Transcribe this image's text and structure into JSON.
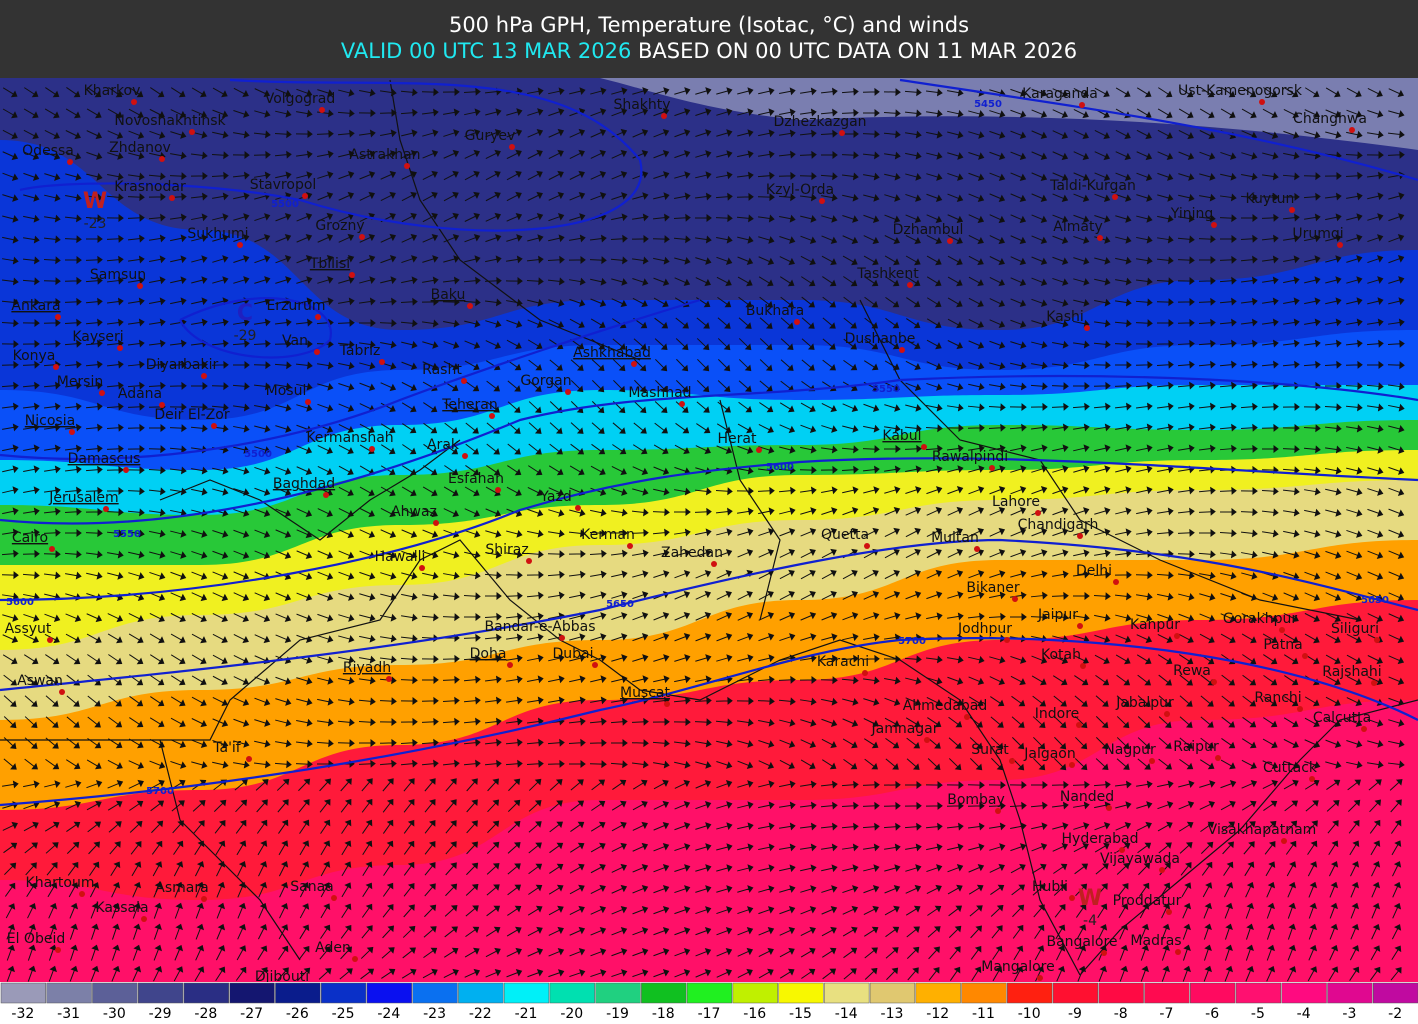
{
  "header": {
    "title": "500 hPa GPH, Temperature (Isotac, °C) and winds",
    "valid": "VALID 00 UTC 13 MAR 2026",
    "based": " BASED ON 00 UTC DATA ON 11 MAR 2026"
  },
  "cities": [
    "Kharkov",
    "Volgograd",
    "Shakhty",
    "Karaganda",
    "Ust-Kamenogorsk",
    "Novoshakhtinsk",
    "Dzhezkazgan",
    "Changhwa",
    "Odessa",
    "Zhdanov",
    "Guryev",
    "Astrakhan",
    "Krasnodar",
    "Stavropol",
    "Kzyl-Orda",
    "Taldi-Kurgan",
    "Kuytun",
    "Yining",
    "Sukhumi",
    "Grozny",
    "Dzhambul",
    "Almaty",
    "Urumqi",
    "Samsun",
    "Tbilisi",
    "Tashkent",
    "Baku",
    "Ankara",
    "Erzurum",
    "Bukhara",
    "Kashi",
    "Kayseri",
    "Van",
    "Dushanbe",
    "Konya",
    "Tabriz",
    "Rasht",
    "Ashkhabad",
    "Diyarbakir",
    "Gorgan",
    "Mersin",
    "Mosul",
    "Adana",
    "Mashhad",
    "Deir El-Zor",
    "Teheran",
    "Nicosia",
    "Kermanshah",
    "Arak",
    "Herat",
    "Kabul",
    "Rawalpindi",
    "Damascus",
    "Esfahan",
    "Baghdad",
    "Yazd",
    "Lahore",
    "Jerusalem",
    "Ahwaz",
    "Chandigarh",
    "Kerman",
    "Quetta",
    "Multan",
    "Cairo",
    "Hawalli",
    "Shiraz",
    "Zahedan",
    "Delhi",
    "Bikaner",
    "Assyut",
    "Bandar-e-Abbas",
    "Jaipur",
    "Kanpur",
    "Gorakhpur",
    "Siliguri",
    "Jodhpur",
    "Patna",
    "Doha",
    "Dubai",
    "Karachi",
    "Kotah",
    "Rewa",
    "Rajshahi",
    "Riyadh",
    "Aswan",
    "Muscat",
    "Ranchi",
    "Ahmedabad",
    "Jabalpur",
    "Indore",
    "Calcutta",
    "Jamnagar",
    "Ta'if",
    "Surat",
    "Jalgaon",
    "Nagpur",
    "Raipur",
    "Cuttack",
    "Bombay",
    "Nanded",
    "Visakhapatnam",
    "Hyderabad",
    "Vijayawada",
    "Khartoum",
    "Asmara",
    "Sanaa",
    "Hubli",
    "Proddatur",
    "Kassala",
    "El Obeid",
    "Aden",
    "Bangalore",
    "Madras",
    "Mangalore",
    "Djibouti"
  ],
  "contour_labels": [
    5450,
    5500,
    5500,
    5550,
    5550,
    5600,
    5600,
    5650,
    5650,
    5700,
    5700
  ],
  "centers": [
    {
      "symbol": "W",
      "value": -23
    },
    {
      "symbol": "C",
      "value": -29
    },
    {
      "symbol": "W",
      "value": -4
    }
  ],
  "legend": {
    "values": [
      -32,
      -31,
      -30,
      -29,
      -28,
      -27,
      -26,
      -25,
      -24,
      -23,
      -22,
      -21,
      -20,
      -19,
      -18,
      -17,
      -16,
      -15,
      -14,
      -13,
      -12,
      -11,
      -10,
      -9,
      -8,
      -7,
      -6,
      -5,
      -4,
      -3,
      -2
    ],
    "colors": [
      "#9a9ab8",
      "#7c80a8",
      "#5c6098",
      "#40458c",
      "#2a2e84",
      "#141670",
      "#0a1c8c",
      "#0a30c8",
      "#0a10f0",
      "#0a70f0",
      "#00b0f0",
      "#00f0f8",
      "#00e0b0",
      "#20d080",
      "#10c020",
      "#20f020",
      "#c0f000",
      "#f8f800",
      "#e8e080",
      "#e0c870",
      "#ffb000",
      "#ff8800",
      "#ff2010",
      "#ff1030",
      "#ff0a44",
      "#ff0a50",
      "#ff0a60",
      "#ff1070",
      "#ff0a80",
      "#e00890",
      "#c00aa0"
    ]
  }
}
